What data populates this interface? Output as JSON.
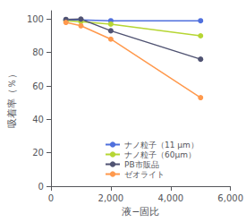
{
  "chart_data": {
    "type": "line",
    "xlabel": "液−固比",
    "ylabel": "吸着率（％）",
    "x": [
      500,
      1000,
      2000,
      5000
    ],
    "series": [
      {
        "name": "ナノ粒子（11 μm）",
        "values": [
          99.5,
          99.5,
          99,
          99
        ]
      },
      {
        "name": "ナノ粒子（60μm）",
        "values": [
          99,
          98.5,
          97,
          90
        ]
      },
      {
        "name": "PB市販品",
        "values": [
          99.8,
          100,
          93,
          76
        ]
      },
      {
        "name": "ゼオライト",
        "values": [
          98,
          96,
          88,
          53
        ]
      }
    ],
    "xlim": [
      0,
      6000
    ],
    "ylim": [
      0,
      105
    ],
    "xticks": [
      0,
      2000,
      4000,
      6000
    ],
    "yticks": [
      0,
      20,
      40,
      60,
      80,
      100
    ],
    "marker": "circle",
    "legend": "lower left",
    "grid": false
  }
}
